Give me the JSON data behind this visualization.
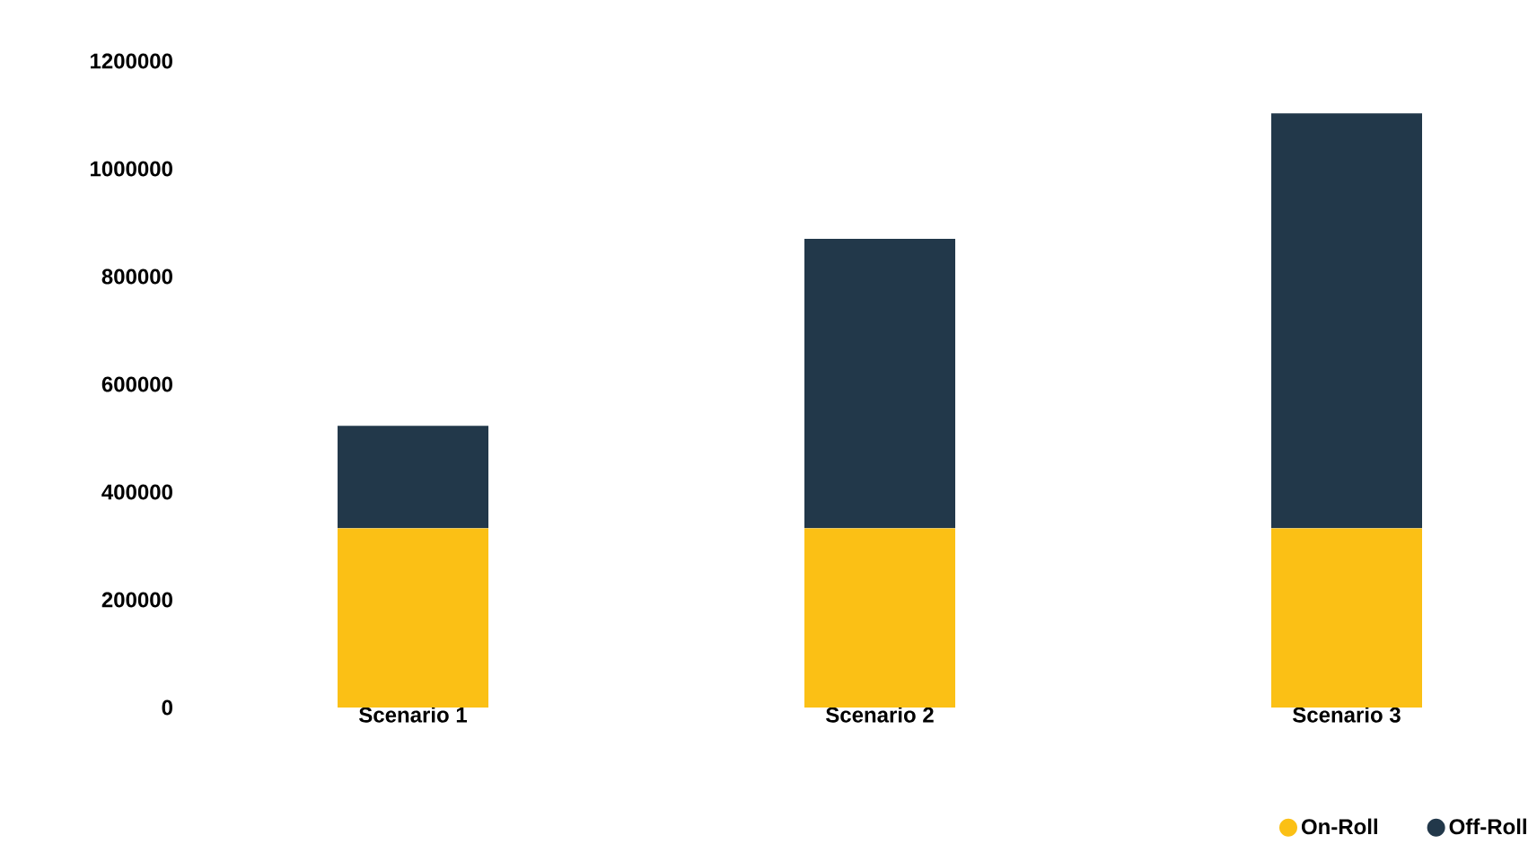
{
  "chart_data": {
    "type": "bar",
    "stacked": true,
    "categories": [
      "Scenario 1",
      "Scenario 2",
      "Scenario 3"
    ],
    "series": [
      {
        "name": "On-Roll",
        "color": "#fbc015",
        "values": [
          333000,
          333000,
          333000
        ]
      },
      {
        "name": "Off-Roll",
        "color": "#22384a",
        "values": [
          190000,
          537000,
          770000
        ]
      }
    ],
    "ylim": [
      0,
      1200000
    ],
    "yticks": [
      0,
      200000,
      400000,
      600000,
      800000,
      1000000,
      1200000
    ],
    "grid": false,
    "legend": "bottom right"
  }
}
